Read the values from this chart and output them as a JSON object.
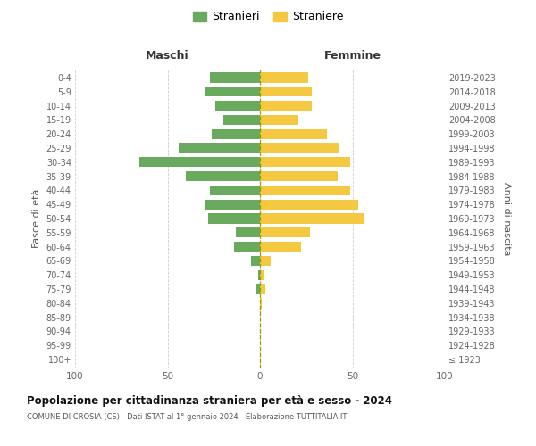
{
  "age_groups": [
    "100+",
    "95-99",
    "90-94",
    "85-89",
    "80-84",
    "75-79",
    "70-74",
    "65-69",
    "60-64",
    "55-59",
    "50-54",
    "45-49",
    "40-44",
    "35-39",
    "30-34",
    "25-29",
    "20-24",
    "15-19",
    "10-14",
    "5-9",
    "0-4"
  ],
  "birth_years": [
    "≤ 1923",
    "1924-1928",
    "1929-1933",
    "1934-1938",
    "1939-1943",
    "1944-1948",
    "1949-1953",
    "1954-1958",
    "1959-1963",
    "1964-1968",
    "1969-1973",
    "1974-1978",
    "1979-1983",
    "1984-1988",
    "1989-1993",
    "1994-1998",
    "1999-2003",
    "2004-2008",
    "2009-2013",
    "2014-2018",
    "2019-2023"
  ],
  "maschi": [
    0,
    0,
    0,
    0,
    0,
    2,
    1,
    5,
    14,
    13,
    28,
    30,
    27,
    40,
    65,
    44,
    26,
    20,
    24,
    30,
    27
  ],
  "femmine": [
    0,
    0,
    0,
    0,
    1,
    3,
    2,
    6,
    22,
    27,
    56,
    53,
    49,
    42,
    49,
    43,
    36,
    21,
    28,
    28,
    26
  ],
  "maschi_color": "#6aaa5e",
  "femmine_color": "#f5c842",
  "grid_color": "#cccccc",
  "zeroline_color": "#999900",
  "title": "Popolazione per cittadinanza straniera per età e sesso - 2024",
  "subtitle": "COMUNE DI CROSIA (CS) - Dati ISTAT al 1° gennaio 2024 - Elaborazione TUTTITALIA.IT",
  "header_left": "Maschi",
  "header_right": "Femmine",
  "ylabel_left": "Fasce di età",
  "ylabel_right": "Anni di nascita",
  "legend_maschi": "Stranieri",
  "legend_femmine": "Straniere",
  "xlim": 100,
  "bar_height": 0.72
}
